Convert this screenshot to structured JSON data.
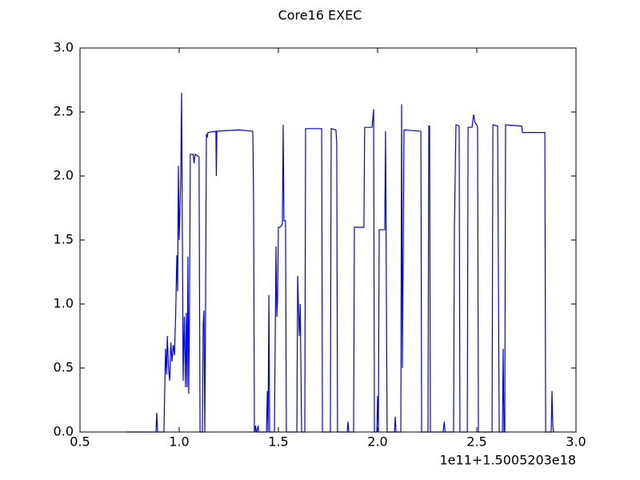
{
  "chart_data": {
    "type": "line",
    "title": "Core16 EXEC",
    "x_offset_label": "1e11+1.5005203e18",
    "xlim": [
      0.5,
      3.0
    ],
    "ylim": [
      0.0,
      3.0
    ],
    "xticks": [
      0.5,
      {
        "value": 1.0,
        "label": "1.0"
      },
      1.5,
      {
        "value": 2.0,
        "label": "2.0"
      },
      2.5,
      {
        "value": 3.0,
        "label": "3.0"
      }
    ],
    "yticks": [
      {
        "value": 0.0,
        "label": "0.0"
      },
      0.5,
      {
        "value": 1.0,
        "label": "1.0"
      },
      1.5,
      {
        "value": 2.0,
        "label": "2.0"
      },
      2.5,
      {
        "value": 3.0,
        "label": "3.0"
      }
    ],
    "grid": false,
    "series": [
      {
        "color": "#0000ff",
        "x": [
          0.734,
          0.883,
          0.887,
          0.891,
          0.923,
          0.931,
          0.936,
          0.94,
          0.946,
          0.952,
          0.958,
          0.964,
          0.97,
          0.976,
          0.982,
          0.988,
          0.992,
          0.996,
          1.0,
          1.008,
          1.012,
          1.02,
          1.026,
          1.032,
          1.036,
          1.04,
          1.044,
          1.048,
          1.052,
          1.056,
          1.07,
          1.075,
          1.08,
          1.1,
          1.105,
          1.117,
          1.121,
          1.125,
          1.129,
          1.133,
          1.137,
          1.141,
          1.145,
          1.185,
          1.187,
          1.19,
          1.3,
          1.371,
          1.375,
          1.379,
          1.385,
          1.387,
          1.39,
          1.398,
          1.4,
          1.404,
          1.44,
          1.444,
          1.448,
          1.452,
          1.456,
          1.48,
          1.484,
          1.488,
          1.492,
          1.496,
          1.5,
          1.508,
          1.52,
          1.524,
          1.528,
          1.536,
          1.54,
          1.593,
          1.597,
          1.605,
          1.61,
          1.617,
          1.633,
          1.637,
          1.718,
          1.722,
          1.762,
          1.766,
          1.79,
          1.794,
          1.798,
          1.847,
          1.851,
          1.855,
          1.879,
          1.883,
          1.931,
          1.935,
          1.972,
          1.98,
          1.984,
          1.996,
          2.0,
          2.004,
          2.008,
          2.036,
          2.04,
          2.048,
          2.085,
          2.089,
          2.093,
          2.117,
          2.121,
          2.125,
          2.133,
          2.137,
          2.218,
          2.222,
          2.254,
          2.258,
          2.262,
          2.266,
          2.33,
          2.336,
          2.34,
          2.383,
          2.387,
          2.395,
          2.411,
          2.415,
          2.452,
          2.456,
          2.476,
          2.484,
          2.49,
          2.5,
          2.504,
          2.508,
          2.577,
          2.581,
          2.605,
          2.613,
          2.629,
          2.633,
          2.637,
          2.641,
          2.645,
          2.726,
          2.73,
          2.843,
          2.847,
          2.875,
          2.879,
          2.883,
          2.887
        ],
        "values": [
          0,
          0,
          0.15,
          0,
          0,
          0.65,
          0.45,
          0.75,
          0.5,
          0.4,
          0.7,
          0.55,
          0.68,
          0.6,
          0.9,
          1.38,
          1.1,
          2.08,
          1.5,
          2.0,
          2.65,
          0.4,
          0.9,
          0.35,
          0.93,
          0.35,
          1.37,
          0.3,
          1.0,
          2.17,
          2.17,
          2.1,
          2.17,
          2.15,
          0,
          0,
          0.85,
          0.95,
          0,
          1.0,
          2.33,
          2.3,
          2.34,
          2.35,
          2.0,
          2.35,
          2.36,
          2.35,
          1.8,
          0,
          0.05,
          0,
          0,
          0.05,
          0,
          0,
          0,
          0.32,
          0,
          1.07,
          0,
          0,
          0.75,
          1.45,
          0.9,
          1.05,
          1.6,
          1.6,
          1.62,
          2.4,
          1.65,
          1.65,
          0,
          0,
          1.22,
          0.75,
          1.0,
          0,
          0,
          2.37,
          2.37,
          0,
          0,
          2.37,
          2.36,
          2.26,
          0,
          0,
          0.08,
          0,
          0,
          1.6,
          1.6,
          2.38,
          2.38,
          2.52,
          0,
          0,
          0.28,
          0,
          1.58,
          1.58,
          2.35,
          0,
          0,
          0.12,
          0,
          0,
          2.56,
          0.5,
          2.36,
          2.36,
          2.35,
          0,
          0,
          2.39,
          2.39,
          0,
          0,
          0.08,
          0,
          0,
          1.6,
          2.4,
          2.39,
          0,
          0,
          2.38,
          2.38,
          2.48,
          2.42,
          2.4,
          2.38,
          0,
          0,
          2.4,
          2.39,
          0,
          0,
          0.65,
          0,
          0,
          2.4,
          2.39,
          2.34,
          2.34,
          0,
          0,
          0.32,
          0.05,
          0
        ]
      }
    ]
  }
}
